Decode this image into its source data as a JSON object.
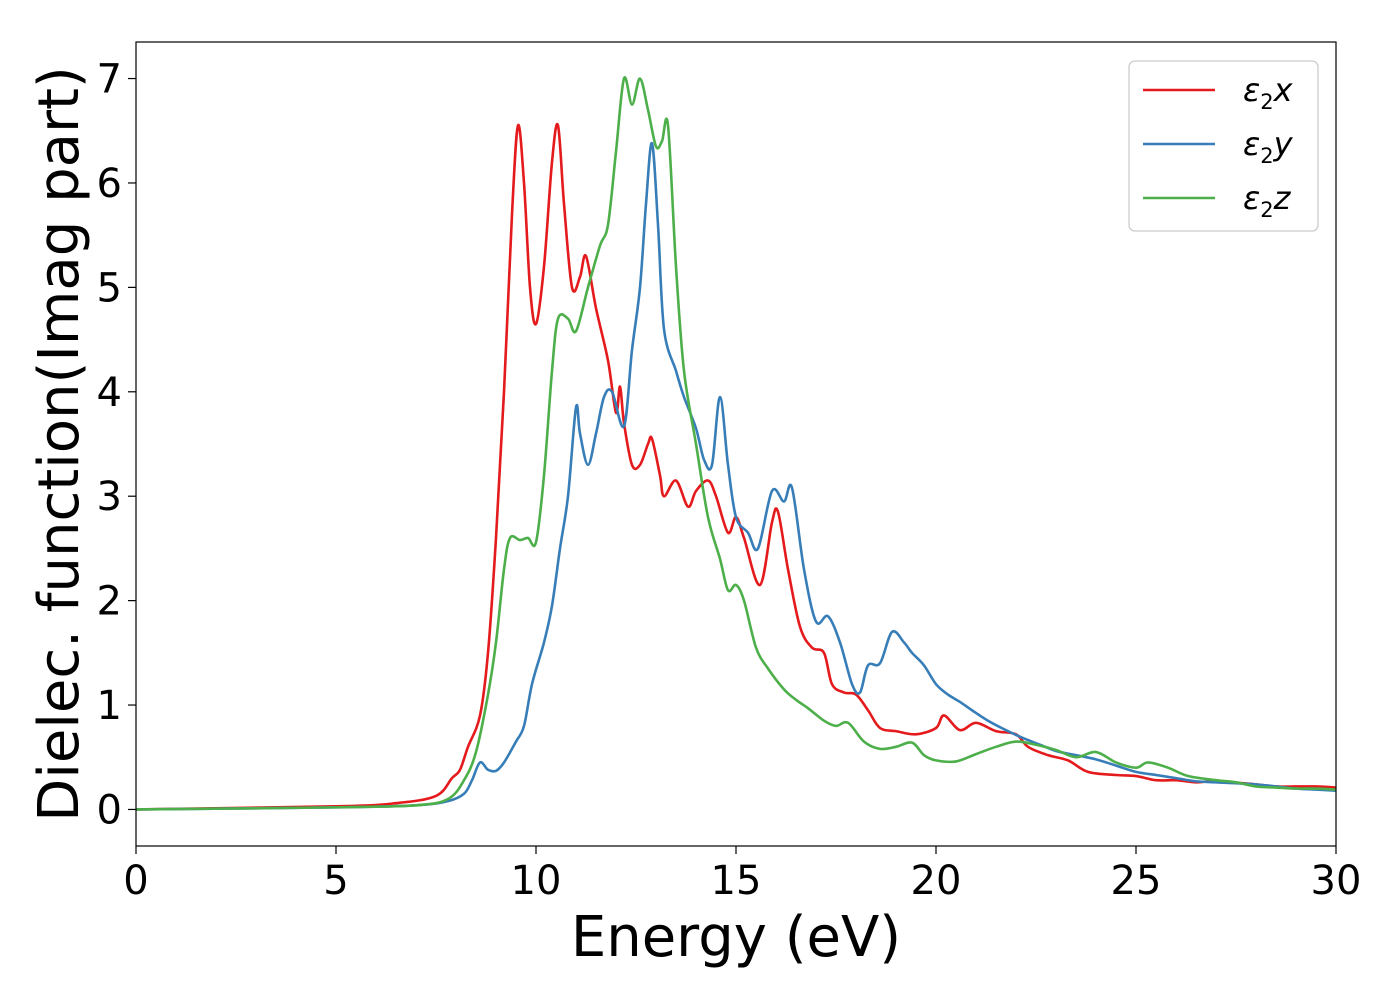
{
  "chart_data": {
    "type": "line",
    "title": "",
    "xlabel": "Energy (eV)",
    "ylabel": "Dielec. function(Imag part)",
    "xlim": [
      0,
      30
    ],
    "ylim": [
      -0.35,
      7.35
    ],
    "xticks": [
      0,
      5,
      10,
      15,
      20,
      25,
      30
    ],
    "yticks": [
      0,
      1,
      2,
      3,
      4,
      5,
      6,
      7
    ],
    "xtick_labels": [
      "0",
      "5",
      "10",
      "15",
      "20",
      "25",
      "30"
    ],
    "ytick_labels": [
      "0",
      "1",
      "2",
      "3",
      "4",
      "5",
      "6",
      "7"
    ],
    "grid": false,
    "legend_position": "top-right",
    "series": [
      {
        "name": "ε2x",
        "legend_base": "ε",
        "legend_sub": "2",
        "legend_suffix": "x",
        "color": "#e41a1c",
        "points": [
          [
            0,
            0
          ],
          [
            5,
            0.03
          ],
          [
            6.5,
            0.06
          ],
          [
            7.5,
            0.13
          ],
          [
            7.9,
            0.3
          ],
          [
            8.1,
            0.38
          ],
          [
            8.3,
            0.6
          ],
          [
            8.6,
            0.9
          ],
          [
            8.8,
            1.5
          ],
          [
            9.0,
            2.6
          ],
          [
            9.2,
            4.0
          ],
          [
            9.4,
            5.7
          ],
          [
            9.55,
            6.55
          ],
          [
            9.7,
            6.0
          ],
          [
            9.85,
            5.0
          ],
          [
            10.0,
            4.65
          ],
          [
            10.2,
            5.2
          ],
          [
            10.4,
            6.2
          ],
          [
            10.55,
            6.55
          ],
          [
            10.7,
            5.8
          ],
          [
            10.9,
            5.0
          ],
          [
            11.1,
            5.1
          ],
          [
            11.25,
            5.3
          ],
          [
            11.5,
            4.8
          ],
          [
            11.8,
            4.3
          ],
          [
            12.0,
            3.8
          ],
          [
            12.1,
            4.05
          ],
          [
            12.2,
            3.7
          ],
          [
            12.4,
            3.3
          ],
          [
            12.6,
            3.3
          ],
          [
            12.8,
            3.5
          ],
          [
            12.9,
            3.55
          ],
          [
            13.1,
            3.2
          ],
          [
            13.2,
            3.0
          ],
          [
            13.5,
            3.15
          ],
          [
            13.8,
            2.9
          ],
          [
            14.0,
            3.05
          ],
          [
            14.3,
            3.15
          ],
          [
            14.5,
            3.0
          ],
          [
            14.8,
            2.65
          ],
          [
            15.0,
            2.8
          ],
          [
            15.2,
            2.6
          ],
          [
            15.6,
            2.15
          ],
          [
            15.9,
            2.75
          ],
          [
            16.05,
            2.85
          ],
          [
            16.3,
            2.3
          ],
          [
            16.6,
            1.75
          ],
          [
            16.9,
            1.55
          ],
          [
            17.2,
            1.5
          ],
          [
            17.4,
            1.2
          ],
          [
            17.7,
            1.12
          ],
          [
            18.0,
            1.1
          ],
          [
            18.3,
            0.95
          ],
          [
            18.6,
            0.78
          ],
          [
            19.0,
            0.75
          ],
          [
            19.5,
            0.72
          ],
          [
            20.0,
            0.78
          ],
          [
            20.2,
            0.9
          ],
          [
            20.6,
            0.76
          ],
          [
            21.0,
            0.83
          ],
          [
            21.5,
            0.75
          ],
          [
            22.0,
            0.72
          ],
          [
            22.3,
            0.6
          ],
          [
            22.8,
            0.52
          ],
          [
            23.3,
            0.47
          ],
          [
            23.8,
            0.36
          ],
          [
            24.5,
            0.33
          ],
          [
            25.0,
            0.32
          ],
          [
            25.5,
            0.28
          ],
          [
            26.0,
            0.28
          ],
          [
            26.5,
            0.26
          ],
          [
            27.0,
            0.27
          ],
          [
            28.0,
            0.24
          ],
          [
            28.5,
            0.22
          ],
          [
            29.0,
            0.22
          ],
          [
            29.5,
            0.22
          ],
          [
            30.0,
            0.21
          ]
        ]
      },
      {
        "name": "ε2y",
        "legend_base": "ε",
        "legend_sub": "2",
        "legend_suffix": "y",
        "color": "#377eb8",
        "points": [
          [
            0,
            0
          ],
          [
            5,
            0.02
          ],
          [
            7,
            0.04
          ],
          [
            7.8,
            0.08
          ],
          [
            8.2,
            0.15
          ],
          [
            8.4,
            0.28
          ],
          [
            8.6,
            0.45
          ],
          [
            8.8,
            0.38
          ],
          [
            9.0,
            0.37
          ],
          [
            9.2,
            0.45
          ],
          [
            9.5,
            0.65
          ],
          [
            9.7,
            0.8
          ],
          [
            9.9,
            1.2
          ],
          [
            10.2,
            1.6
          ],
          [
            10.4,
            1.95
          ],
          [
            10.6,
            2.5
          ],
          [
            10.8,
            3.0
          ],
          [
            11.0,
            3.85
          ],
          [
            11.1,
            3.6
          ],
          [
            11.3,
            3.3
          ],
          [
            11.5,
            3.6
          ],
          [
            11.7,
            3.95
          ],
          [
            11.9,
            4.0
          ],
          [
            12.2,
            3.67
          ],
          [
            12.4,
            4.4
          ],
          [
            12.6,
            5.0
          ],
          [
            12.75,
            5.8
          ],
          [
            12.9,
            6.38
          ],
          [
            13.05,
            5.6
          ],
          [
            13.2,
            4.6
          ],
          [
            13.5,
            4.2
          ],
          [
            13.7,
            3.95
          ],
          [
            14.0,
            3.65
          ],
          [
            14.2,
            3.35
          ],
          [
            14.4,
            3.3
          ],
          [
            14.6,
            3.95
          ],
          [
            14.8,
            3.3
          ],
          [
            15.0,
            2.8
          ],
          [
            15.3,
            2.65
          ],
          [
            15.55,
            2.5
          ],
          [
            15.9,
            3.05
          ],
          [
            16.2,
            2.95
          ],
          [
            16.4,
            3.08
          ],
          [
            16.7,
            2.3
          ],
          [
            17.0,
            1.8
          ],
          [
            17.3,
            1.85
          ],
          [
            17.6,
            1.6
          ],
          [
            17.9,
            1.2
          ],
          [
            18.1,
            1.12
          ],
          [
            18.3,
            1.38
          ],
          [
            18.6,
            1.4
          ],
          [
            18.9,
            1.7
          ],
          [
            19.2,
            1.6
          ],
          [
            19.4,
            1.5
          ],
          [
            19.7,
            1.38
          ],
          [
            20.0,
            1.2
          ],
          [
            20.3,
            1.1
          ],
          [
            20.6,
            1.03
          ],
          [
            20.9,
            0.95
          ],
          [
            21.3,
            0.85
          ],
          [
            21.8,
            0.75
          ],
          [
            22.2,
            0.68
          ],
          [
            22.6,
            0.62
          ],
          [
            23.0,
            0.56
          ],
          [
            23.5,
            0.52
          ],
          [
            24.0,
            0.48
          ],
          [
            24.5,
            0.42
          ],
          [
            25.0,
            0.36
          ],
          [
            25.5,
            0.33
          ],
          [
            26.0,
            0.3
          ],
          [
            26.5,
            0.27
          ],
          [
            27.0,
            0.26
          ],
          [
            28.0,
            0.24
          ],
          [
            29.0,
            0.2
          ],
          [
            29.5,
            0.19
          ],
          [
            30.0,
            0.18
          ]
        ]
      },
      {
        "name": "ε2z",
        "legend_base": "ε",
        "legend_sub": "2",
        "legend_suffix": "z",
        "color": "#4daf4a",
        "points": [
          [
            0,
            0
          ],
          [
            5,
            0.02
          ],
          [
            7,
            0.04
          ],
          [
            7.8,
            0.1
          ],
          [
            8.2,
            0.28
          ],
          [
            8.5,
            0.55
          ],
          [
            8.8,
            1.1
          ],
          [
            9.0,
            1.6
          ],
          [
            9.2,
            2.3
          ],
          [
            9.35,
            2.6
          ],
          [
            9.6,
            2.58
          ],
          [
            9.8,
            2.6
          ],
          [
            10.0,
            2.56
          ],
          [
            10.2,
            3.2
          ],
          [
            10.4,
            4.2
          ],
          [
            10.55,
            4.7
          ],
          [
            10.8,
            4.7
          ],
          [
            11.0,
            4.58
          ],
          [
            11.3,
            5.0
          ],
          [
            11.6,
            5.4
          ],
          [
            11.8,
            5.6
          ],
          [
            12.0,
            6.3
          ],
          [
            12.2,
            7.0
          ],
          [
            12.4,
            6.75
          ],
          [
            12.6,
            7.0
          ],
          [
            12.8,
            6.7
          ],
          [
            13.0,
            6.35
          ],
          [
            13.15,
            6.4
          ],
          [
            13.3,
            6.55
          ],
          [
            13.5,
            5.2
          ],
          [
            13.7,
            4.2
          ],
          [
            14.0,
            3.5
          ],
          [
            14.3,
            2.8
          ],
          [
            14.6,
            2.4
          ],
          [
            14.8,
            2.1
          ],
          [
            15.0,
            2.15
          ],
          [
            15.2,
            2.0
          ],
          [
            15.5,
            1.55
          ],
          [
            15.8,
            1.35
          ],
          [
            16.2,
            1.15
          ],
          [
            16.5,
            1.05
          ],
          [
            16.8,
            0.97
          ],
          [
            17.2,
            0.85
          ],
          [
            17.5,
            0.8
          ],
          [
            17.8,
            0.83
          ],
          [
            18.2,
            0.65
          ],
          [
            18.6,
            0.58
          ],
          [
            19.0,
            0.6
          ],
          [
            19.4,
            0.64
          ],
          [
            19.7,
            0.52
          ],
          [
            20.0,
            0.47
          ],
          [
            20.5,
            0.46
          ],
          [
            21.0,
            0.53
          ],
          [
            21.5,
            0.6
          ],
          [
            22.0,
            0.65
          ],
          [
            22.5,
            0.62
          ],
          [
            23.0,
            0.57
          ],
          [
            23.5,
            0.5
          ],
          [
            24.0,
            0.55
          ],
          [
            24.5,
            0.45
          ],
          [
            25.0,
            0.4
          ],
          [
            25.3,
            0.45
          ],
          [
            25.8,
            0.4
          ],
          [
            26.3,
            0.32
          ],
          [
            27.0,
            0.28
          ],
          [
            27.5,
            0.26
          ],
          [
            28.0,
            0.22
          ],
          [
            28.5,
            0.21
          ],
          [
            29.0,
            0.2
          ],
          [
            29.5,
            0.2
          ],
          [
            30.0,
            0.19
          ]
        ]
      }
    ]
  }
}
